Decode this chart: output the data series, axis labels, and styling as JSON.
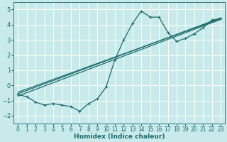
{
  "xlabel": "Humidex (Indice chaleur)",
  "background_color": "#c8eaea",
  "grid_color": "#b0d8d8",
  "line_color": "#1a6b6b",
  "xlim": [
    -0.5,
    23.5
  ],
  "ylim": [
    -2.5,
    5.5
  ],
  "xticks": [
    0,
    1,
    2,
    3,
    4,
    5,
    6,
    7,
    8,
    9,
    10,
    11,
    12,
    13,
    14,
    15,
    16,
    17,
    18,
    19,
    20,
    21,
    22,
    23
  ],
  "yticks": [
    -2,
    -1,
    0,
    1,
    2,
    3,
    4,
    5
  ],
  "series1_x": [
    0,
    1,
    2,
    3,
    4,
    5,
    6,
    7,
    8,
    9,
    10,
    11,
    12,
    13,
    14,
    15,
    16,
    17,
    18,
    19,
    20,
    21,
    22,
    23
  ],
  "series1_y": [
    -0.6,
    -0.75,
    -1.1,
    -1.3,
    -1.2,
    -1.3,
    -1.4,
    -1.7,
    -1.2,
    -0.9,
    -0.1,
    1.7,
    3.0,
    4.1,
    4.9,
    4.5,
    4.5,
    3.5,
    2.9,
    3.1,
    3.4,
    3.8,
    4.3,
    4.4
  ],
  "line1_x": [
    0,
    23
  ],
  "line1_y": [
    -0.7,
    4.35
  ],
  "line2_x": [
    0,
    23
  ],
  "line2_y": [
    -0.55,
    4.45
  ],
  "line3_x": [
    0,
    23
  ],
  "line3_y": [
    -0.45,
    4.4
  ]
}
